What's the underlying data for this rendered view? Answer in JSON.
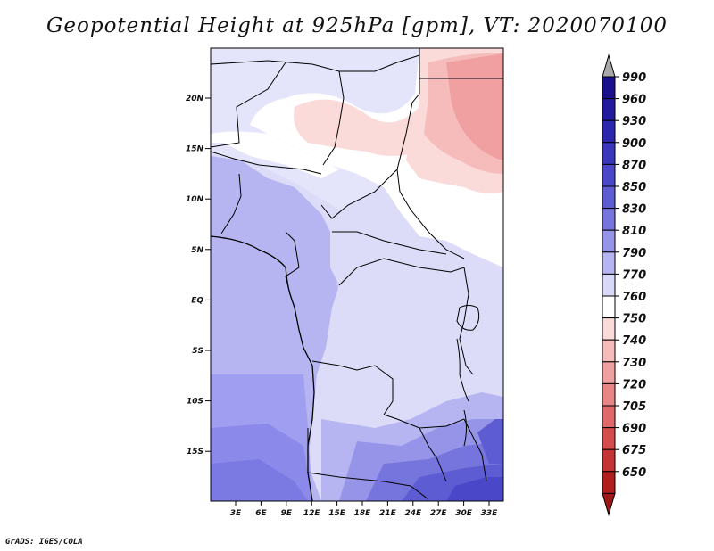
{
  "title": "Geopotential Height at 925hPa [gpm], VT: 2020070100",
  "credit": "GrADS: IGES/COLA",
  "map": {
    "lat_ticks": [
      "20N",
      "15N",
      "10N",
      "5N",
      "EQ",
      "5S",
      "10S",
      "15S"
    ],
    "lon_ticks": [
      "3E",
      "6E",
      "9E",
      "12E",
      "15E",
      "18E",
      "21E",
      "24E",
      "27E",
      "30E",
      "33E"
    ]
  },
  "colorbar": {
    "levels": [
      {
        "label": "990",
        "color": "#1a0f8c"
      },
      {
        "label": "960",
        "color": "#221b9e"
      },
      {
        "label": "930",
        "color": "#2c28ad"
      },
      {
        "label": "900",
        "color": "#3a37bb"
      },
      {
        "label": "870",
        "color": "#4a48c8"
      },
      {
        "label": "850",
        "color": "#5d5cd3"
      },
      {
        "label": "830",
        "color": "#7675dd"
      },
      {
        "label": "810",
        "color": "#9594e8"
      },
      {
        "label": "790",
        "color": "#b6b5f1"
      },
      {
        "label": "770",
        "color": "#d8d8f8"
      },
      {
        "label": "760",
        "color": "#ffffff"
      },
      {
        "label": "750",
        "color": "#fbdada"
      },
      {
        "label": "740",
        "color": "#f6bcbc"
      },
      {
        "label": "730",
        "color": "#f0a0a0"
      },
      {
        "label": "720",
        "color": "#e88585"
      },
      {
        "label": "705",
        "color": "#e06868"
      },
      {
        "label": "690",
        "color": "#d44c4c"
      },
      {
        "label": "675",
        "color": "#c53434"
      },
      {
        "label": "650",
        "color": "#b01e1e"
      }
    ],
    "overflow_color": "#a9a9a9",
    "underflow_color": "#a01515"
  }
}
